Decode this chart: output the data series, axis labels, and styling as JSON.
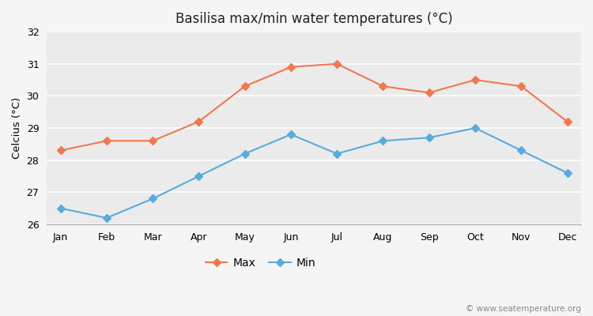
{
  "title": "Basilisa max/min water temperatures (°C)",
  "ylabel": "Celcius (°C)",
  "months": [
    "Jan",
    "Feb",
    "Mar",
    "Apr",
    "May",
    "Jun",
    "Jul",
    "Aug",
    "Sep",
    "Oct",
    "Nov",
    "Dec"
  ],
  "max_temps": [
    28.3,
    28.6,
    28.6,
    29.2,
    30.3,
    30.9,
    31.0,
    30.3,
    30.1,
    30.5,
    30.3,
    29.2
  ],
  "min_temps": [
    26.5,
    26.2,
    26.8,
    27.5,
    28.2,
    28.8,
    28.2,
    28.6,
    28.7,
    29.0,
    28.3,
    27.6
  ],
  "max_color": "#f07850",
  "min_color": "#5aabdc",
  "background_color": "#f5f5f5",
  "plot_bg_color": "#ebebeb",
  "ylim": [
    26.0,
    32.0
  ],
  "yticks": [
    26,
    27,
    28,
    29,
    30,
    31,
    32
  ],
  "watermark": "© www.seatemperature.org",
  "legend_labels": [
    "Max",
    "Min"
  ]
}
